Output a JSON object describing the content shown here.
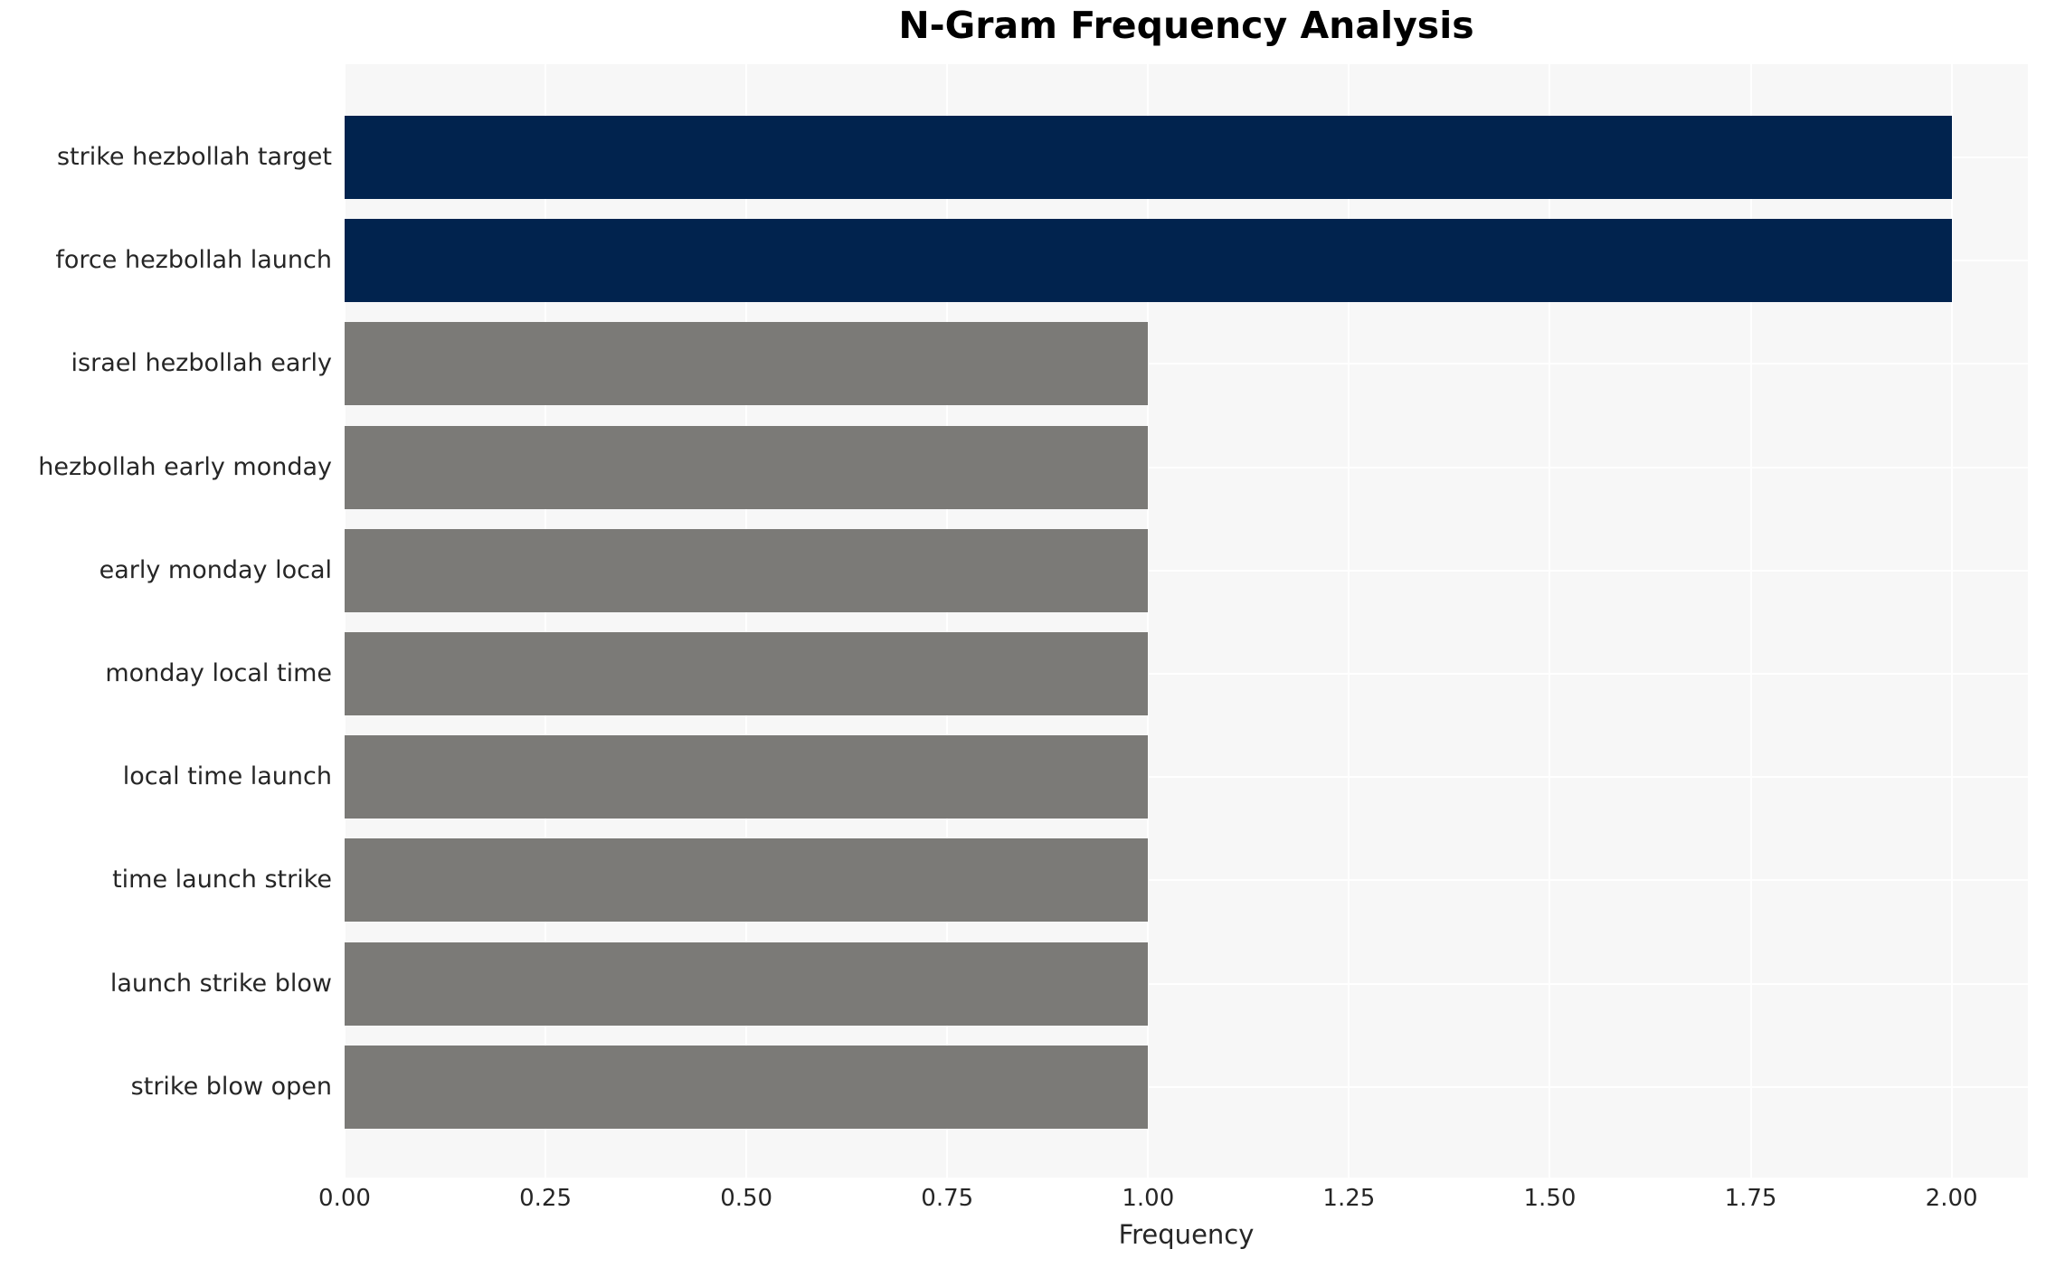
{
  "chart_data": {
    "type": "bar",
    "orientation": "horizontal",
    "title": "N-Gram Frequency Analysis",
    "xlabel": "Frequency",
    "ylabel": "",
    "categories": [
      "strike hezbollah target",
      "force hezbollah launch",
      "israel hezbollah early",
      "hezbollah early monday",
      "early monday local",
      "monday local time",
      "local time launch",
      "time launch strike",
      "launch strike blow",
      "strike blow open"
    ],
    "values": [
      2,
      2,
      1,
      1,
      1,
      1,
      1,
      1,
      1,
      1
    ],
    "bar_colors": [
      "#01234e",
      "#01234e",
      "#7b7a77",
      "#7b7a77",
      "#7b7a77",
      "#7b7a77",
      "#7b7a77",
      "#7b7a77",
      "#7b7a77",
      "#7b7a77"
    ],
    "x_tick_labels": [
      "0.00",
      "0.25",
      "0.50",
      "0.75",
      "1.00",
      "1.25",
      "1.50",
      "1.75",
      "2.00"
    ],
    "x_tick_values": [
      0,
      0.25,
      0.5,
      0.75,
      1.0,
      1.25,
      1.5,
      1.75,
      2.0
    ],
    "xlim": [
      0,
      2.095
    ],
    "grid": "both",
    "legend_position": "none",
    "colors": {
      "high_frequency_bar": "#01234e",
      "low_frequency_bar": "#7b7a77",
      "plot_background": "#f7f7f7",
      "gridline": "#ffffff",
      "tick_text": "#262626",
      "title_text": "#000000"
    }
  }
}
